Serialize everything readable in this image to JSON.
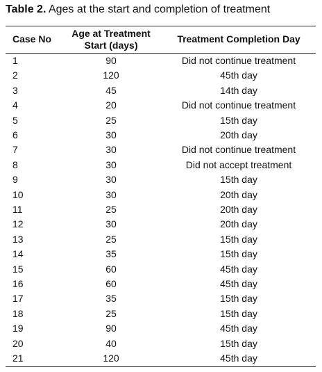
{
  "table": {
    "caption": {
      "label": "Table 2.",
      "text": "Ages at the start and completion of treatment"
    },
    "headers": [
      "Case No",
      "Age at Treatment Start (days)",
      "Treatment Completion Day"
    ],
    "rows": [
      [
        1,
        90,
        "Did not continue treatment"
      ],
      [
        2,
        120,
        "45th day"
      ],
      [
        3,
        45,
        "14th day"
      ],
      [
        4,
        20,
        "Did not continue treatment"
      ],
      [
        5,
        25,
        "15th day"
      ],
      [
        6,
        30,
        "20th day"
      ],
      [
        7,
        30,
        "Did not continue treatment"
      ],
      [
        8,
        30,
        "Did not accept treatment"
      ],
      [
        9,
        30,
        "15th day"
      ],
      [
        10,
        30,
        "20th day"
      ],
      [
        11,
        25,
        "20th day"
      ],
      [
        12,
        30,
        "20th day"
      ],
      [
        13,
        25,
        "15th day"
      ],
      [
        14,
        35,
        "15th day"
      ],
      [
        15,
        60,
        "45th day"
      ],
      [
        16,
        60,
        "45th day"
      ],
      [
        17,
        35,
        "15th day"
      ],
      [
        18,
        25,
        "15th day"
      ],
      [
        19,
        90,
        "45th day"
      ],
      [
        20,
        40,
        "15th day"
      ],
      [
        21,
        120,
        "45th day"
      ]
    ]
  }
}
